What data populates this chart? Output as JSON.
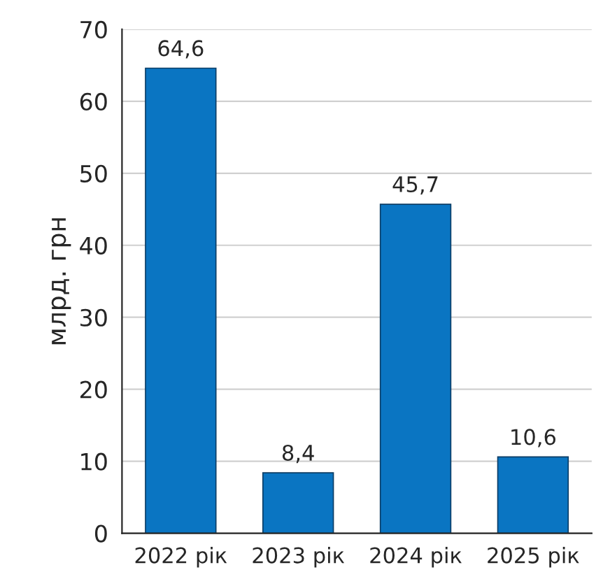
{
  "chart_data": {
    "type": "bar",
    "ylabel": "млрд. грн",
    "categories": [
      "2022 рік",
      "2023 рік",
      "2024 рік",
      "2025 рік"
    ],
    "values": [
      64.6,
      8.4,
      45.7,
      10.6
    ],
    "value_labels": [
      "64,6",
      "8,4",
      "45,7",
      "10,6"
    ],
    "color": "#0a75c2",
    "ylim": [
      0,
      70
    ],
    "yticks": [
      0,
      10,
      20,
      30,
      40,
      50,
      60,
      70
    ],
    "grid": "y",
    "legend": false
  }
}
